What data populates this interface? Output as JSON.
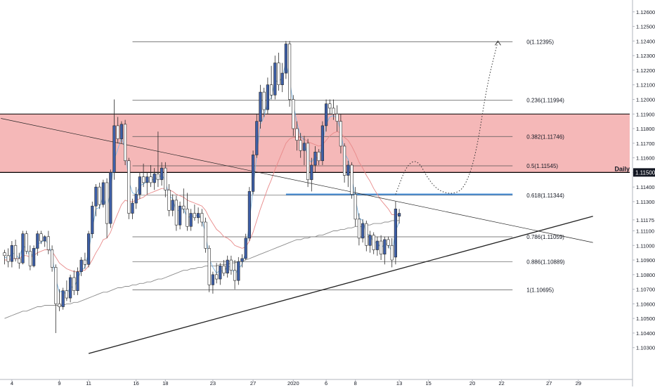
{
  "colors": {
    "up_body": "#3d5fa8",
    "down_body": "#ffffff",
    "candle_border": "#2a2a2a",
    "zone_fill": "#f5b8b8",
    "zone_edge": "#000000",
    "fib_line": "#555555",
    "blue_level": "#4a90d9",
    "ema_fast": "#7cb7e6",
    "ema_mid": "#e88a8a",
    "sma_slow": "#8c8c8c",
    "projection": "#333333"
  },
  "chart_data": {
    "type": "candlestick",
    "title": "",
    "xlabel": "",
    "ylabel": "",
    "ylim": [
      1.102,
      1.1264
    ],
    "grid": false,
    "y_ticks": [
      "1.12600",
      "1.12500",
      "1.12400",
      "1.12300",
      "1.12200",
      "1.12100",
      "1.12000",
      "1.11900",
      "1.11800",
      "1.11700",
      "1.11600",
      "1.11500",
      "1.11400",
      "1.11300",
      "1.11175",
      "1.11100",
      "1.11000",
      "1.10900",
      "1.10800",
      "1.10700",
      "1.10600",
      "1.10500",
      "1.10400",
      "1.10300"
    ],
    "x_ticks": [
      {
        "label": "4",
        "bar": 2
      },
      {
        "label": "9",
        "bar": 15
      },
      {
        "label": "11",
        "bar": 23
      },
      {
        "label": "16",
        "bar": 36
      },
      {
        "label": "18",
        "bar": 44
      },
      {
        "label": "23",
        "bar": 57
      },
      {
        "label": "27",
        "bar": 68
      },
      {
        "label": "2020",
        "bar": 79
      },
      {
        "label": "6",
        "bar": 88
      },
      {
        "label": "8",
        "bar": 96
      },
      {
        "label": "13",
        "bar": 108
      },
      {
        "label": "15",
        "bar": 116
      },
      {
        "label": "20",
        "bar": 128
      },
      {
        "label": "22",
        "bar": 136
      },
      {
        "label": "27",
        "bar": 149
      },
      {
        "label": "29",
        "bar": 157
      }
    ],
    "price_label": {
      "label": "Daily",
      "value": "1.11500",
      "price": 1.115
    },
    "resistance_zone": {
      "top": 1.119,
      "bottom": 1.115
    },
    "blue_level": {
      "price": 1.1135,
      "start_bar": 77,
      "end_bar": 139
    },
    "fib_levels": [
      {
        "label": "0(1.12395)",
        "price": 1.12395
      },
      {
        "label": "0.236(1.11994)",
        "price": 1.11994
      },
      {
        "label": "0.382(1.11746)",
        "price": 1.11746
      },
      {
        "label": "0.5(1.11545)",
        "price": 1.11545
      },
      {
        "label": "0.618(1.11344)",
        "price": 1.11344
      },
      {
        "label": "0.786(1.11059)",
        "price": 1.11059
      },
      {
        "label": "0.886(1.10889)",
        "price": 1.10889
      },
      {
        "label": "1(1.10695)",
        "price": 1.10695
      }
    ],
    "fib_start_bar": 35,
    "fib_end_bar": 139,
    "trendlines": [
      {
        "name": "falling",
        "from": {
          "bar": -1,
          "price": 1.1187
        },
        "to": {
          "bar": 161,
          "price": 1.1102
        }
      },
      {
        "name": "rising",
        "from": {
          "bar": 23,
          "price": 1.1026
        },
        "to": {
          "bar": 161,
          "price": 1.112
        }
      }
    ],
    "projection": [
      {
        "bar": 107,
        "price": 1.1135
      },
      {
        "bar": 110,
        "price": 1.1155
      },
      {
        "bar": 113,
        "price": 1.1159
      },
      {
        "bar": 116,
        "price": 1.1145
      },
      {
        "bar": 119,
        "price": 1.1137
      },
      {
        "bar": 123,
        "price": 1.1135
      },
      {
        "bar": 126,
        "price": 1.114
      },
      {
        "bar": 129,
        "price": 1.1162
      },
      {
        "bar": 132,
        "price": 1.121
      },
      {
        "bar": 135,
        "price": 1.124
      }
    ],
    "candles": [
      [
        1.1095,
        1.1097,
        1.1087,
        1.1093
      ],
      [
        1.1093,
        1.1098,
        1.1085,
        1.1089
      ],
      [
        1.1089,
        1.1103,
        1.1085,
        1.11
      ],
      [
        1.11,
        1.1104,
        1.1089,
        1.1091
      ],
      [
        1.1091,
        1.1095,
        1.1084,
        1.1088
      ],
      [
        1.1088,
        1.111,
        1.1087,
        1.1108
      ],
      [
        1.1108,
        1.111,
        1.1094,
        1.1096
      ],
      [
        1.1096,
        1.11,
        1.1083,
        1.1086
      ],
      [
        1.1086,
        1.11,
        1.1085,
        1.1098
      ],
      [
        1.1098,
        1.111,
        1.1093,
        1.1108
      ],
      [
        1.1108,
        1.111,
        1.1101,
        1.1103
      ],
      [
        1.1103,
        1.1107,
        1.1099,
        1.1106
      ],
      [
        1.1106,
        1.111,
        1.1094,
        1.1097
      ],
      [
        1.1097,
        1.11,
        1.1082,
        1.1085
      ],
      [
        1.1085,
        1.1087,
        1.104,
        1.106
      ],
      [
        1.106,
        1.107,
        1.1055,
        1.1058
      ],
      [
        1.1058,
        1.1071,
        1.1056,
        1.1069
      ],
      [
        1.1069,
        1.1076,
        1.1062,
        1.1064
      ],
      [
        1.1064,
        1.108,
        1.1061,
        1.1078
      ],
      [
        1.1078,
        1.1083,
        1.1066,
        1.1069
      ],
      [
        1.1069,
        1.1085,
        1.1066,
        1.1082
      ],
      [
        1.1082,
        1.1092,
        1.1079,
        1.109
      ],
      [
        1.109,
        1.1095,
        1.1084,
        1.1087
      ],
      [
        1.1087,
        1.111,
        1.1085,
        1.1108
      ],
      [
        1.1108,
        1.113,
        1.1105,
        1.1127
      ],
      [
        1.1127,
        1.1142,
        1.112,
        1.114
      ],
      [
        1.114,
        1.1143,
        1.1125,
        1.1128
      ],
      [
        1.1128,
        1.1145,
        1.1126,
        1.1143
      ],
      [
        1.1143,
        1.1146,
        1.1105,
        1.1115
      ],
      [
        1.1115,
        1.1152,
        1.1112,
        1.115
      ],
      [
        1.115,
        1.12,
        1.1145,
        1.1182
      ],
      [
        1.1182,
        1.1188,
        1.117,
        1.1173
      ],
      [
        1.1173,
        1.1185,
        1.117,
        1.1183
      ],
      [
        1.1183,
        1.1186,
        1.1155,
        1.1158
      ],
      [
        1.1158,
        1.116,
        1.1118,
        1.1122
      ],
      [
        1.1122,
        1.1132,
        1.1118,
        1.1129
      ],
      [
        1.1129,
        1.114,
        1.1125,
        1.1135
      ],
      [
        1.1135,
        1.115,
        1.1132,
        1.1147
      ],
      [
        1.1147,
        1.1156,
        1.114,
        1.1143
      ],
      [
        1.1143,
        1.115,
        1.1135,
        1.1147
      ],
      [
        1.1147,
        1.1155,
        1.114,
        1.1143
      ],
      [
        1.1143,
        1.1153,
        1.1138,
        1.1149
      ],
      [
        1.1149,
        1.1178,
        1.114,
        1.1145
      ],
      [
        1.1145,
        1.1157,
        1.1141,
        1.1153
      ],
      [
        1.1153,
        1.1157,
        1.1133,
        1.1138
      ],
      [
        1.1138,
        1.1142,
        1.112,
        1.1124
      ],
      [
        1.1124,
        1.1135,
        1.112,
        1.1131
      ],
      [
        1.1131,
        1.1134,
        1.111,
        1.1114
      ],
      [
        1.1114,
        1.113,
        1.1111,
        1.1127
      ],
      [
        1.1127,
        1.1139,
        1.1122,
        1.1125
      ],
      [
        1.1125,
        1.1136,
        1.111,
        1.1113
      ],
      [
        1.1113,
        1.1125,
        1.111,
        1.1122
      ],
      [
        1.1122,
        1.1128,
        1.1117,
        1.1119
      ],
      [
        1.1119,
        1.1126,
        1.1115,
        1.1122
      ],
      [
        1.1122,
        1.1125,
        1.1113,
        1.1116
      ],
      [
        1.1116,
        1.1119,
        1.1095,
        1.1098
      ],
      [
        1.1098,
        1.11,
        1.1068,
        1.1073
      ],
      [
        1.1073,
        1.1082,
        1.1067,
        1.108
      ],
      [
        1.108,
        1.1088,
        1.1074,
        1.1077
      ],
      [
        1.1077,
        1.1088,
        1.1073,
        1.1086
      ],
      [
        1.1086,
        1.109,
        1.1079,
        1.1081
      ],
      [
        1.1081,
        1.1093,
        1.1078,
        1.109
      ],
      [
        1.109,
        1.1093,
        1.108,
        1.1083
      ],
      [
        1.1083,
        1.109,
        1.107,
        1.1076
      ],
      [
        1.1076,
        1.1092,
        1.1073,
        1.1089
      ],
      [
        1.1089,
        1.1094,
        1.1085,
        1.1091
      ],
      [
        1.1091,
        1.1108,
        1.109,
        1.1105
      ],
      [
        1.1105,
        1.114,
        1.1103,
        1.1137
      ],
      [
        1.1137,
        1.1165,
        1.1135,
        1.1162
      ],
      [
        1.1162,
        1.119,
        1.116,
        1.1185
      ],
      [
        1.1185,
        1.121,
        1.118,
        1.1205
      ],
      [
        1.1205,
        1.1208,
        1.1188,
        1.1193
      ],
      [
        1.1193,
        1.1215,
        1.119,
        1.121
      ],
      [
        1.121,
        1.1223,
        1.12,
        1.1203
      ],
      [
        1.1203,
        1.123,
        1.12,
        1.1225
      ],
      [
        1.1225,
        1.1232,
        1.1206,
        1.121
      ],
      [
        1.121,
        1.1225,
        1.1205,
        1.1218
      ],
      [
        1.1218,
        1.124,
        1.1214,
        1.1238
      ],
      [
        1.1238,
        1.124,
        1.1195,
        1.12
      ],
      [
        1.12,
        1.1203,
        1.1175,
        1.118
      ],
      [
        1.118,
        1.1185,
        1.1165,
        1.1172
      ],
      [
        1.1172,
        1.1177,
        1.116,
        1.1165
      ],
      [
        1.1165,
        1.1175,
        1.1155,
        1.117
      ],
      [
        1.117,
        1.1173,
        1.114,
        1.1145
      ],
      [
        1.1145,
        1.116,
        1.1137,
        1.1155
      ],
      [
        1.1155,
        1.1168,
        1.115,
        1.1164
      ],
      [
        1.1164,
        1.1166,
        1.1155,
        1.1158
      ],
      [
        1.1158,
        1.1185,
        1.1155,
        1.1182
      ],
      [
        1.1182,
        1.12,
        1.1178,
        1.1197
      ],
      [
        1.1197,
        1.12,
        1.119,
        1.1194
      ],
      [
        1.1194,
        1.12,
        1.1186,
        1.119
      ],
      [
        1.119,
        1.1196,
        1.1178,
        1.1185
      ],
      [
        1.1185,
        1.119,
        1.1163,
        1.1168
      ],
      [
        1.1168,
        1.117,
        1.1143,
        1.1148
      ],
      [
        1.1148,
        1.1158,
        1.114,
        1.1155
      ],
      [
        1.1155,
        1.1157,
        1.1132,
        1.1135
      ],
      [
        1.1135,
        1.114,
        1.1113,
        1.1118
      ],
      [
        1.1118,
        1.1122,
        1.11,
        1.1105
      ],
      [
        1.1105,
        1.1118,
        1.1102,
        1.1115
      ],
      [
        1.1115,
        1.1117,
        1.1096,
        1.11
      ],
      [
        1.11,
        1.111,
        1.1095,
        1.1107
      ],
      [
        1.1107,
        1.1109,
        1.1094,
        1.1097
      ],
      [
        1.1097,
        1.1106,
        1.1093,
        1.1103
      ],
      [
        1.1103,
        1.1107,
        1.109,
        1.1094
      ],
      [
        1.1094,
        1.1106,
        1.1087,
        1.1104
      ],
      [
        1.1104,
        1.1106,
        1.1098,
        1.11
      ],
      [
        1.11,
        1.1105,
        1.1085,
        1.109
      ],
      [
        1.1092,
        1.113,
        1.1087,
        1.1125
      ],
      [
        1.112,
        1.1125,
        1.1115,
        1.1122
      ]
    ],
    "ema_fast": [
      1.1092,
      1.1091,
      1.1095,
      1.1094,
      1.1091,
      1.11,
      1.1098,
      1.1092,
      1.1095,
      1.1101,
      1.1102,
      1.1104,
      1.1101,
      1.1093,
      1.1077,
      1.1068,
      1.1069,
      1.1066,
      1.1072,
      1.1071,
      1.1077,
      1.1083,
      1.1085,
      1.1096,
      1.1111,
      1.1125,
      1.1126,
      1.1134,
      1.1125,
      1.1137,
      1.1159,
      1.1166,
      1.1174,
      1.1166,
      1.1144,
      1.1136,
      1.1135,
      1.1141,
      1.1142,
      1.1144,
      1.1144,
      1.1146,
      1.1146,
      1.1149,
      1.1144,
      1.1134,
      1.1132,
      1.1123,
      1.1125,
      1.1125,
      1.1119,
      1.112,
      1.112,
      1.1121,
      1.1118,
      1.1108,
      1.1091,
      1.1085,
      1.1081,
      1.1083,
      1.1082,
      1.1086,
      1.1085,
      1.108,
      1.1084,
      1.1087,
      1.1096,
      1.1116,
      1.1139,
      1.1162,
      1.1183,
      1.1188,
      1.1199,
      1.1201,
      1.1213,
      1.1212,
      1.1215,
      1.1226,
      1.1213,
      1.1197,
      1.1184,
      1.1175,
      1.1172,
      1.1159,
      1.1157,
      1.1161,
      1.1159,
      1.117,
      1.1183,
      1.1188,
      1.1189,
      1.1187,
      1.1178,
      1.1163,
      1.1159,
      1.1147,
      1.1132,
      1.1119,
      1.1117,
      1.1108,
      1.1107,
      1.1102,
      1.1102,
      1.1098,
      1.1101,
      1.1101,
      1.1095,
      1.111,
      1.1116
    ],
    "ema_mid": [
      1.109,
      1.109,
      1.1091,
      1.1091,
      1.1091,
      1.1093,
      1.1093,
      1.1092,
      1.1093,
      1.1095,
      1.1096,
      1.1097,
      1.1097,
      1.1096,
      1.1092,
      1.1088,
      1.1086,
      1.1084,
      1.1083,
      1.1082,
      1.1082,
      1.1083,
      1.1083,
      1.1086,
      1.109,
      1.1095,
      1.1099,
      1.1104,
      1.1105,
      1.1109,
      1.1116,
      1.1122,
      1.1128,
      1.1131,
      1.113,
      1.113,
      1.1131,
      1.1132,
      1.1133,
      1.1135,
      1.1136,
      1.1137,
      1.1138,
      1.1139,
      1.1139,
      1.1138,
      1.1137,
      1.1135,
      1.1134,
      1.1133,
      1.1131,
      1.113,
      1.1129,
      1.1128,
      1.1127,
      1.1124,
      1.1119,
      1.1115,
      1.1111,
      1.1109,
      1.1106,
      1.1105,
      1.1103,
      1.11,
      1.1099,
      1.1098,
      1.1099,
      1.1103,
      1.1109,
      1.1117,
      1.1125,
      1.1132,
      1.1139,
      1.1145,
      1.1152,
      1.1158,
      1.1164,
      1.117,
      1.1173,
      1.1174,
      1.1174,
      1.1174,
      1.1173,
      1.1171,
      1.117,
      1.1169,
      1.1168,
      1.1169,
      1.1172,
      1.1175,
      1.1177,
      1.1178,
      1.1177,
      1.1174,
      1.1172,
      1.1168,
      1.1163,
      1.1157,
      1.1153,
      1.1148,
      1.1144,
      1.1139,
      1.1135,
      1.1131,
      1.1128,
      1.1125,
      1.1121,
      1.1121,
      1.1121
    ],
    "sma_slow": [
      1.105,
      1.1051,
      1.1052,
      1.1053,
      1.1054,
      1.1055,
      1.1055,
      1.1056,
      1.1057,
      1.1058,
      1.1058,
      1.1059,
      1.1059,
      1.1059,
      1.1059,
      1.1059,
      1.1059,
      1.106,
      1.106,
      1.1061,
      1.1061,
      1.1062,
      1.1063,
      1.1064,
      1.1065,
      1.1066,
      1.1067,
      1.1068,
      1.1068,
      1.1069,
      1.107,
      1.1071,
      1.1071,
      1.1072,
      1.1072,
      1.1073,
      1.1073,
      1.1074,
      1.1074,
      1.1075,
      1.1075,
      1.1076,
      1.1077,
      1.1077,
      1.1078,
      1.1079,
      1.108,
      1.1081,
      1.1082,
      1.1083,
      1.1083,
      1.1084,
      1.1084,
      1.1085,
      1.1085,
      1.1086,
      1.1086,
      1.1086,
      1.1086,
      1.1087,
      1.1087,
      1.1087,
      1.1088,
      1.1088,
      1.1089,
      1.1089,
      1.109,
      1.1091,
      1.1092,
      1.1093,
      1.1094,
      1.1095,
      1.1096,
      1.1097,
      1.1098,
      1.1099,
      1.11,
      1.1101,
      1.1102,
      1.1103,
      1.1104,
      1.1104,
      1.1105,
      1.1105,
      1.1106,
      1.1106,
      1.1107,
      1.1107,
      1.1108,
      1.1109,
      1.111,
      1.111,
      1.1111,
      1.1111,
      1.1112,
      1.1112,
      1.1113,
      1.1113,
      1.1113,
      1.1114,
      1.1114,
      1.1115,
      1.1115,
      1.1115,
      1.1116,
      1.1116,
      1.1117,
      1.1117,
      1.1117
    ]
  }
}
